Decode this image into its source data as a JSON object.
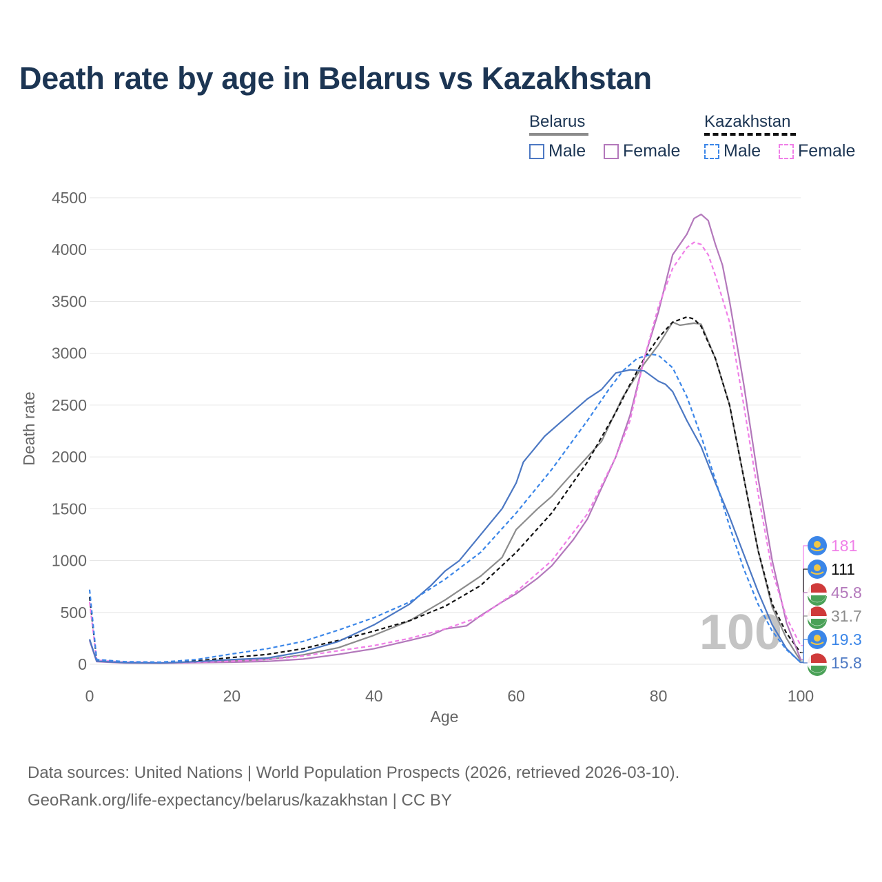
{
  "title": "Death rate by age in Belarus vs Kazakhstan",
  "legend": {
    "groups": [
      {
        "name": "Belarus",
        "items": [
          {
            "label": "Male",
            "color": "#4c78c3",
            "dashed": false
          },
          {
            "label": "Female",
            "color": "#b378bb",
            "dashed": false
          }
        ]
      },
      {
        "name": "Kazakhstan",
        "items": [
          {
            "label": "Male",
            "color": "#3b86e8",
            "dashed": true
          },
          {
            "label": "Female",
            "color": "#f07fe8",
            "dashed": true
          }
        ]
      }
    ]
  },
  "year_watermark": "100",
  "footer": {
    "line1": "Data sources: United Nations | World Population Prospects (2026, retrieved 2026-03-10).",
    "line2": "GeoRank.org/life-expectancy/belarus/kazakhstan | CC BY"
  },
  "chart_data": {
    "type": "line",
    "title": "Death rate by age in Belarus vs Kazakhstan",
    "xlabel": "Age",
    "ylabel": "Death rate",
    "xlim": [
      0,
      100
    ],
    "ylim": [
      0,
      4500
    ],
    "xticks": [
      0,
      20,
      40,
      60,
      80,
      100
    ],
    "yticks": [
      0,
      500,
      1000,
      1500,
      2000,
      2500,
      3000,
      3500,
      4000,
      4500
    ],
    "series": [
      {
        "name": "Belarus Male",
        "color": "#4c78c3",
        "dash": false,
        "points": [
          [
            0,
            240
          ],
          [
            1,
            30
          ],
          [
            5,
            15
          ],
          [
            10,
            12
          ],
          [
            15,
            25
          ],
          [
            20,
            45
          ],
          [
            25,
            60
          ],
          [
            30,
            120
          ],
          [
            35,
            220
          ],
          [
            40,
            380
          ],
          [
            45,
            580
          ],
          [
            48,
            760
          ],
          [
            50,
            900
          ],
          [
            52,
            1000
          ],
          [
            55,
            1250
          ],
          [
            58,
            1500
          ],
          [
            60,
            1750
          ],
          [
            61,
            1950
          ],
          [
            64,
            2200
          ],
          [
            67,
            2380
          ],
          [
            70,
            2560
          ],
          [
            72,
            2650
          ],
          [
            74,
            2810
          ],
          [
            76,
            2840
          ],
          [
            78,
            2830
          ],
          [
            80,
            2730
          ],
          [
            81,
            2700
          ],
          [
            82,
            2630
          ],
          [
            84,
            2350
          ],
          [
            86,
            2100
          ],
          [
            88,
            1750
          ],
          [
            90,
            1420
          ],
          [
            92,
            1060
          ],
          [
            94,
            700
          ],
          [
            96,
            380
          ],
          [
            98,
            150
          ],
          [
            100,
            15.8
          ]
        ]
      },
      {
        "name": "Belarus Female",
        "color": "#b378bb",
        "dash": false,
        "points": [
          [
            0,
            230
          ],
          [
            1,
            25
          ],
          [
            5,
            12
          ],
          [
            10,
            10
          ],
          [
            15,
            15
          ],
          [
            20,
            20
          ],
          [
            25,
            28
          ],
          [
            30,
            50
          ],
          [
            35,
            95
          ],
          [
            40,
            150
          ],
          [
            45,
            230
          ],
          [
            48,
            280
          ],
          [
            50,
            340
          ],
          [
            53,
            370
          ],
          [
            55,
            470
          ],
          [
            58,
            600
          ],
          [
            60,
            680
          ],
          [
            63,
            830
          ],
          [
            65,
            950
          ],
          [
            68,
            1200
          ],
          [
            70,
            1400
          ],
          [
            72,
            1700
          ],
          [
            74,
            2000
          ],
          [
            76,
            2400
          ],
          [
            78,
            2950
          ],
          [
            80,
            3400
          ],
          [
            82,
            3950
          ],
          [
            84,
            4150
          ],
          [
            85,
            4300
          ],
          [
            86,
            4340
          ],
          [
            87,
            4280
          ],
          [
            88,
            4050
          ],
          [
            89,
            3850
          ],
          [
            90,
            3500
          ],
          [
            92,
            2700
          ],
          [
            94,
            1800
          ],
          [
            96,
            1000
          ],
          [
            98,
            400
          ],
          [
            100,
            45.8
          ]
        ]
      },
      {
        "name": "Kazakhstan Male",
        "color": "#3b86e8",
        "dash": true,
        "points": [
          [
            0,
            720
          ],
          [
            1,
            45
          ],
          [
            5,
            25
          ],
          [
            10,
            20
          ],
          [
            15,
            45
          ],
          [
            20,
            100
          ],
          [
            25,
            150
          ],
          [
            30,
            220
          ],
          [
            35,
            330
          ],
          [
            40,
            450
          ],
          [
            45,
            600
          ],
          [
            50,
            820
          ],
          [
            55,
            1080
          ],
          [
            60,
            1460
          ],
          [
            65,
            1880
          ],
          [
            70,
            2350
          ],
          [
            73,
            2650
          ],
          [
            75,
            2830
          ],
          [
            77,
            2950
          ],
          [
            79,
            2990
          ],
          [
            80,
            2980
          ],
          [
            82,
            2860
          ],
          [
            84,
            2580
          ],
          [
            86,
            2200
          ],
          [
            88,
            1780
          ],
          [
            90,
            1330
          ],
          [
            92,
            920
          ],
          [
            94,
            580
          ],
          [
            96,
            320
          ],
          [
            98,
            140
          ],
          [
            100,
            19.3
          ]
        ]
      },
      {
        "name": "Kazakhstan Female",
        "color": "#f07fe8",
        "dash": true,
        "points": [
          [
            0,
            600
          ],
          [
            1,
            40
          ],
          [
            5,
            20
          ],
          [
            10,
            15
          ],
          [
            15,
            20
          ],
          [
            20,
            30
          ],
          [
            25,
            45
          ],
          [
            30,
            80
          ],
          [
            35,
            130
          ],
          [
            40,
            180
          ],
          [
            45,
            250
          ],
          [
            50,
            340
          ],
          [
            55,
            460
          ],
          [
            60,
            700
          ],
          [
            65,
            1000
          ],
          [
            70,
            1450
          ],
          [
            74,
            2000
          ],
          [
            76,
            2350
          ],
          [
            78,
            2950
          ],
          [
            80,
            3450
          ],
          [
            82,
            3820
          ],
          [
            84,
            4020
          ],
          [
            85,
            4070
          ],
          [
            86,
            4050
          ],
          [
            87,
            3950
          ],
          [
            88,
            3750
          ],
          [
            90,
            3300
          ],
          [
            92,
            2500
          ],
          [
            94,
            1650
          ],
          [
            96,
            900
          ],
          [
            98,
            450
          ],
          [
            100,
            181
          ]
        ]
      },
      {
        "name": "Belarus Total",
        "color": "#8c8c8c",
        "dash": false,
        "points": [
          [
            0,
            240
          ],
          [
            1,
            28
          ],
          [
            5,
            14
          ],
          [
            10,
            11
          ],
          [
            15,
            20
          ],
          [
            20,
            32
          ],
          [
            25,
            45
          ],
          [
            30,
            90
          ],
          [
            35,
            160
          ],
          [
            40,
            280
          ],
          [
            45,
            420
          ],
          [
            50,
            620
          ],
          [
            55,
            850
          ],
          [
            58,
            1030
          ],
          [
            60,
            1300
          ],
          [
            63,
            1500
          ],
          [
            65,
            1620
          ],
          [
            68,
            1850
          ],
          [
            70,
            2000
          ],
          [
            72,
            2150
          ],
          [
            75,
            2580
          ],
          [
            78,
            2900
          ],
          [
            80,
            3080
          ],
          [
            82,
            3300
          ],
          [
            83,
            3270
          ],
          [
            85,
            3290
          ],
          [
            86,
            3280
          ],
          [
            88,
            2950
          ],
          [
            90,
            2500
          ],
          [
            92,
            1800
          ],
          [
            94,
            1100
          ],
          [
            96,
            550
          ],
          [
            98,
            250
          ],
          [
            100,
            31.7
          ]
        ]
      },
      {
        "name": "Kazakhstan Total",
        "color": "#111111",
        "dash": true,
        "points": [
          [
            0,
            650
          ],
          [
            1,
            42
          ],
          [
            5,
            22
          ],
          [
            10,
            18
          ],
          [
            15,
            32
          ],
          [
            20,
            65
          ],
          [
            25,
            95
          ],
          [
            30,
            150
          ],
          [
            35,
            230
          ],
          [
            40,
            320
          ],
          [
            45,
            420
          ],
          [
            50,
            560
          ],
          [
            55,
            760
          ],
          [
            60,
            1080
          ],
          [
            65,
            1460
          ],
          [
            70,
            1950
          ],
          [
            74,
            2430
          ],
          [
            76,
            2700
          ],
          [
            78,
            2950
          ],
          [
            80,
            3150
          ],
          [
            82,
            3300
          ],
          [
            84,
            3350
          ],
          [
            85,
            3330
          ],
          [
            86,
            3260
          ],
          [
            88,
            2950
          ],
          [
            90,
            2500
          ],
          [
            92,
            1800
          ],
          [
            94,
            1100
          ],
          [
            96,
            580
          ],
          [
            98,
            300
          ],
          [
            100,
            111
          ]
        ]
      }
    ],
    "end_labels": [
      {
        "value": "181",
        "color": "#f07fe8",
        "country": "Kazakhstan"
      },
      {
        "value": "111",
        "color": "#111111",
        "country": "Kazakhstan"
      },
      {
        "value": "45.8",
        "color": "#b378bb",
        "country": "Belarus"
      },
      {
        "value": "31.7",
        "color": "#8c8c8c",
        "country": "Belarus"
      },
      {
        "value": "19.3",
        "color": "#3b86e8",
        "country": "Kazakhstan"
      },
      {
        "value": "15.8",
        "color": "#4c78c3",
        "country": "Belarus"
      }
    ]
  }
}
